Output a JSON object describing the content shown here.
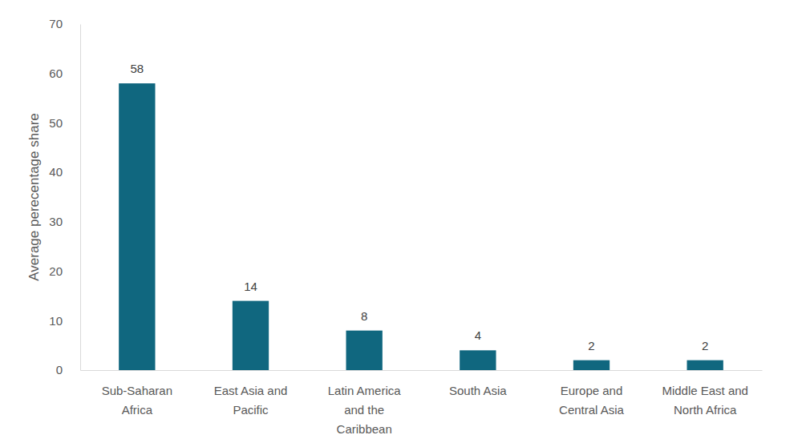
{
  "chart_data": {
    "type": "bar",
    "y_label": "Average perecentage share",
    "categories": [
      "Sub-Saharan Africa",
      "East Asia and Pacific",
      "Latin America and the Caribbean",
      "South Asia",
      "Europe and Central Asia",
      "Middle East and North Africa"
    ],
    "values": [
      58,
      14,
      8,
      4,
      2,
      2
    ],
    "color": "#10677f",
    "ylim": [
      0,
      70
    ],
    "yticks": [
      0,
      10,
      20,
      30,
      40,
      50,
      60,
      70
    ],
    "grid": false,
    "data_labels": true
  }
}
